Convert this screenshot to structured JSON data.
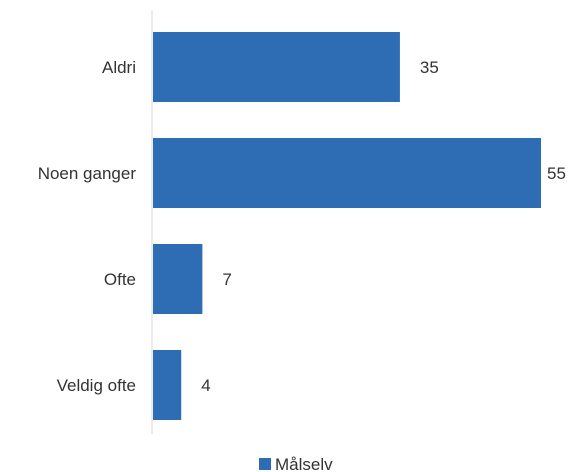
{
  "chart_data": {
    "type": "bar",
    "orientation": "horizontal",
    "categories": [
      "Aldri",
      "Noen ganger",
      "Ofte",
      "Veldig ofte"
    ],
    "series": [
      {
        "name": "Målselv",
        "values": [
          35,
          55,
          7,
          4
        ],
        "color": "#2e6db4"
      }
    ],
    "data_labels": [
      "35",
      "55",
      "7",
      "4"
    ],
    "xlim": [
      0,
      55
    ],
    "grid": false,
    "legend_position": "bottom"
  }
}
